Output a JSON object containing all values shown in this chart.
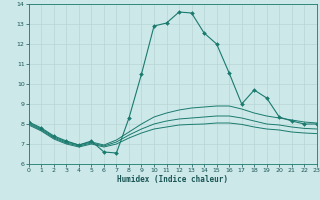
{
  "xlabel": "Humidex (Indice chaleur)",
  "xlim": [
    0,
    23
  ],
  "ylim": [
    6,
    14
  ],
  "yticks": [
    6,
    7,
    8,
    9,
    10,
    11,
    12,
    13,
    14
  ],
  "xticks": [
    0,
    1,
    2,
    3,
    4,
    5,
    6,
    7,
    8,
    9,
    10,
    11,
    12,
    13,
    14,
    15,
    16,
    17,
    18,
    19,
    20,
    21,
    22,
    23
  ],
  "bg_color": "#cce8e8",
  "line_color": "#1a7a6e",
  "grid_color": "#b8d4d4",
  "line1_x": [
    0,
    1,
    2,
    3,
    4,
    5,
    6,
    7,
    8,
    9,
    10,
    11,
    12,
    13,
    14,
    15,
    16,
    17,
    18,
    19,
    20,
    21,
    22,
    23
  ],
  "line1_y": [
    8.1,
    7.8,
    7.4,
    7.15,
    6.95,
    7.15,
    6.6,
    6.55,
    8.3,
    10.5,
    12.9,
    13.05,
    13.6,
    13.55,
    12.55,
    12.0,
    10.55,
    9.0,
    9.7,
    9.3,
    8.35,
    8.15,
    8.0,
    8.0
  ],
  "line2_x": [
    0,
    1,
    2,
    3,
    4,
    5,
    6,
    7,
    8,
    9,
    10,
    11,
    12,
    13,
    14,
    15,
    16,
    17,
    18,
    19,
    20,
    21,
    22,
    23
  ],
  "line2_y": [
    8.05,
    7.75,
    7.35,
    7.1,
    6.95,
    7.1,
    6.95,
    7.2,
    7.6,
    8.0,
    8.35,
    8.55,
    8.7,
    8.8,
    8.85,
    8.9,
    8.9,
    8.75,
    8.55,
    8.4,
    8.3,
    8.2,
    8.1,
    8.05
  ],
  "line3_x": [
    0,
    1,
    2,
    3,
    4,
    5,
    6,
    7,
    8,
    9,
    10,
    11,
    12,
    13,
    14,
    15,
    16,
    17,
    18,
    19,
    20,
    21,
    22,
    23
  ],
  "line3_y": [
    8.0,
    7.7,
    7.3,
    7.05,
    6.9,
    7.05,
    6.9,
    7.1,
    7.45,
    7.75,
    8.0,
    8.15,
    8.25,
    8.3,
    8.35,
    8.4,
    8.4,
    8.3,
    8.15,
    8.0,
    7.95,
    7.85,
    7.78,
    7.75
  ],
  "line4_x": [
    0,
    1,
    2,
    3,
    4,
    5,
    6,
    7,
    8,
    9,
    10,
    11,
    12,
    13,
    14,
    15,
    16,
    17,
    18,
    19,
    20,
    21,
    22,
    23
  ],
  "line4_y": [
    7.95,
    7.65,
    7.25,
    7.0,
    6.85,
    7.0,
    6.85,
    7.0,
    7.3,
    7.55,
    7.75,
    7.85,
    7.95,
    7.98,
    8.0,
    8.05,
    8.05,
    7.98,
    7.85,
    7.75,
    7.7,
    7.6,
    7.55,
    7.52
  ]
}
